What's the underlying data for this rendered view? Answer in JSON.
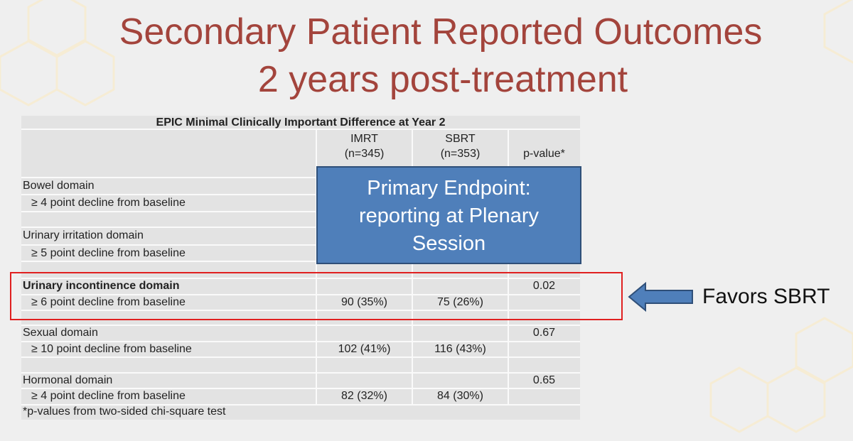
{
  "title": [
    "Secondary Patient Reported Outcomes",
    "2 years post-treatment"
  ],
  "table": {
    "caption": "EPIC Minimal Clinically Important Difference at Year 2",
    "columns": [
      {
        "name": "IMRT",
        "n": "(n=345)"
      },
      {
        "name": "SBRT",
        "n": "(n=353)"
      },
      {
        "name": "p-value*"
      }
    ],
    "rows": [
      {
        "domain": "Bowel domain",
        "measure": "≥ 4 point decline from baseline"
      },
      {
        "domain": "Urinary irritation domain",
        "measure": "≥ 5 point decline from baseline"
      },
      {
        "domain": "Urinary incontinence domain",
        "measure": "≥ 6 point decline from baseline",
        "imrt": "90 (35%)",
        "sbrt": "75 (26%)",
        "p": "0.02"
      },
      {
        "domain": "Sexual domain",
        "measure": "≥ 10 point decline from baseline",
        "imrt": "102 (41%)",
        "sbrt": "116 (43%)",
        "p": "0.67"
      },
      {
        "domain": "Hormonal domain",
        "measure": "≥ 4 point decline from baseline",
        "imrt": "82 (32%)",
        "sbrt": "84 (30%)",
        "p": "0.65"
      }
    ],
    "footnote": "*p-values from two-sided chi-square test"
  },
  "overlay": [
    "Primary Endpoint:",
    "reporting at Plenary",
    "Session"
  ],
  "annotation": "Favors SBRT"
}
